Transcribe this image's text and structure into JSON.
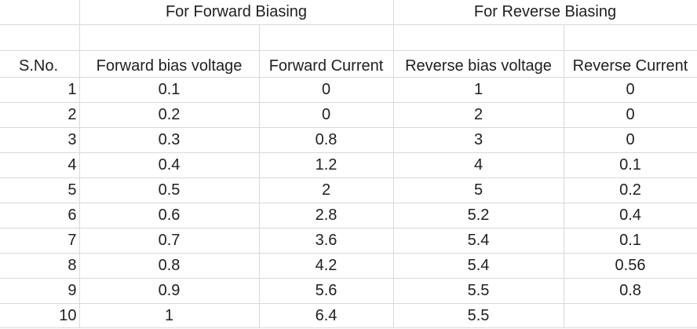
{
  "header_groups": {
    "forward": "For Forward Biasing",
    "reverse": "For Reverse Biasing"
  },
  "columns": {
    "sno": "S.No.",
    "fwd_voltage": "Forward bias voltage",
    "fwd_current": "Forward Current",
    "rev_voltage": "Reverse bias voltage",
    "rev_current": "Reverse Current"
  },
  "rows": [
    {
      "sno": "1",
      "fv": "0.1",
      "fc": "0",
      "rv": "1",
      "rc": "0"
    },
    {
      "sno": "2",
      "fv": "0.2",
      "fc": "0",
      "rv": "2",
      "rc": "0"
    },
    {
      "sno": "3",
      "fv": "0.3",
      "fc": "0.8",
      "rv": "3",
      "rc": "0"
    },
    {
      "sno": "4",
      "fv": "0.4",
      "fc": "1.2",
      "rv": "4",
      "rc": "0.1"
    },
    {
      "sno": "5",
      "fv": "0.5",
      "fc": "2",
      "rv": "5",
      "rc": "0.2"
    },
    {
      "sno": "6",
      "fv": "0.6",
      "fc": "2.8",
      "rv": "5.2",
      "rc": "0.4"
    },
    {
      "sno": "7",
      "fv": "0.7",
      "fc": "3.6",
      "rv": "5.4",
      "rc": "0.1"
    },
    {
      "sno": "8",
      "fv": "0.8",
      "fc": "4.2",
      "rv": "5.4",
      "rc": "0.56"
    },
    {
      "sno": "9",
      "fv": "0.9",
      "fc": "5.6",
      "rv": "5.5",
      "rc": "0.8"
    },
    {
      "sno": "10",
      "fv": "1",
      "fc": "6.4",
      "rv": "5.5",
      "rc": ""
    }
  ]
}
